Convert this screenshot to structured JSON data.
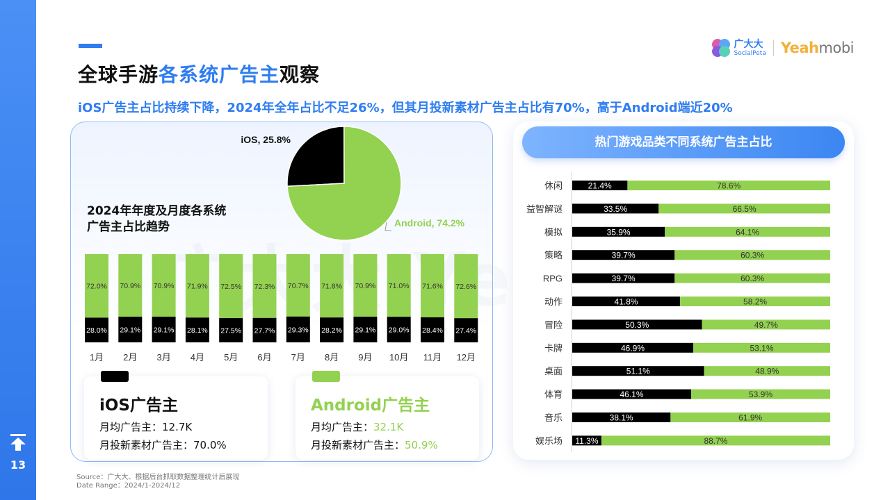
{
  "page_number": "13",
  "title": {
    "part1": "全球手游",
    "highlight": "各系统广告主",
    "part2": "观察"
  },
  "subtitle": "iOS广告主占比持续下降，2024年全年占比不足26%，但其月投新素材广告主占比有70%，高于Android端近20%",
  "logos": {
    "cn_name": "广大大",
    "cn_sub": "SocialPeta",
    "brand_a": "Yeah",
    "brand_b": "mobi"
  },
  "watermark": "广大大 Yeahmobi",
  "left_chart_title": [
    "2024年年度及月度各系统",
    "广告主占比趋势"
  ],
  "colors": {
    "ios": "#000000",
    "android": "#93d150",
    "accent": "#2f7df0"
  },
  "chart_data": [
    {
      "type": "pie",
      "categories": [
        "iOS",
        "Android"
      ],
      "values": [
        25.8,
        74.2
      ],
      "labels": [
        "iOS, 25.8%",
        "Android, 74.2%"
      ]
    },
    {
      "type": "bar",
      "stacked": true,
      "title": "2024年年度及月度各系统广告主占比趋势",
      "categories": [
        "1月",
        "2月",
        "3月",
        "4月",
        "5月",
        "6月",
        "7月",
        "8月",
        "9月",
        "10月",
        "11月",
        "12月"
      ],
      "series": [
        {
          "name": "iOS",
          "values": [
            28.0,
            29.1,
            29.1,
            28.1,
            27.5,
            27.7,
            29.3,
            28.2,
            29.1,
            29.0,
            28.4,
            27.4
          ]
        },
        {
          "name": "Android",
          "values": [
            72.0,
            70.9,
            70.9,
            71.9,
            72.5,
            72.3,
            70.7,
            71.8,
            70.9,
            71.0,
            71.6,
            72.6
          ]
        }
      ],
      "ylim": [
        0,
        100
      ]
    },
    {
      "type": "bar",
      "orientation": "horizontal",
      "stacked": true,
      "title": "热门游戏品类不同系统广告主占比",
      "categories": [
        "休闲",
        "益智解谜",
        "模拟",
        "策略",
        "RPG",
        "动作",
        "冒险",
        "卡牌",
        "桌面",
        "体育",
        "音乐",
        "娱乐场"
      ],
      "series": [
        {
          "name": "iOS",
          "values": [
            21.4,
            33.5,
            35.9,
            39.7,
            39.7,
            41.8,
            50.3,
            46.9,
            51.1,
            46.1,
            38.1,
            11.3
          ]
        },
        {
          "name": "Android",
          "values": [
            78.6,
            66.5,
            64.1,
            60.3,
            60.3,
            58.2,
            49.7,
            53.1,
            48.9,
            53.9,
            61.9,
            88.7
          ]
        }
      ],
      "xlim": [
        0,
        100
      ]
    }
  ],
  "right_panel_title": "热门游戏品类不同系统广告主占比",
  "cards": {
    "ios": {
      "title": "iOS广告主",
      "row1_label": "月均广告主：",
      "row1_value": "12.7K",
      "row2_label": "月投新素材广告主：",
      "row2_value": "70.0%"
    },
    "android": {
      "title": "Android广告主",
      "row1_label": "月均广告主：",
      "row1_value": "32.1K",
      "row2_label": "月投新素材广告主：",
      "row2_value": "50.9%"
    }
  },
  "source": {
    "line1": "Source：广大大、根据后台抓取数据整理统计后展现",
    "line2": "Date Range：2024/1-2024/12"
  }
}
